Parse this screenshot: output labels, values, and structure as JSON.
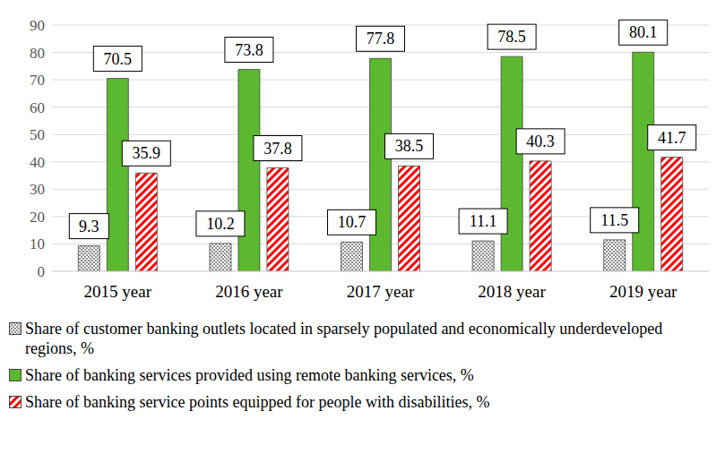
{
  "chart_data": {
    "type": "bar",
    "categories": [
      "2015 year",
      "2016 year",
      "2017 year",
      "2018 year",
      "2019 year"
    ],
    "series": [
      {
        "name": "Share of customer banking outlets located in sparsely populated and economically underdeveloped regions, %",
        "color": "#ffffff",
        "values": [
          9.3,
          10.2,
          10.7,
          11.1,
          11.5
        ]
      },
      {
        "name": "Share of banking services provided using remote banking services, %",
        "color": "#5cb82e",
        "values": [
          70.5,
          73.8,
          77.8,
          78.5,
          80.1
        ]
      },
      {
        "name": "Share of banking service points equipped for people with disabilities, %",
        "color": "#ff0000",
        "values": [
          35.9,
          37.8,
          38.5,
          40.3,
          41.7
        ]
      }
    ],
    "ylim": [
      0,
      90
    ],
    "yticks": [
      0,
      10,
      20,
      30,
      40,
      50,
      60,
      70,
      80,
      90
    ],
    "grid": true,
    "data_labels": true,
    "legend": "bottom"
  }
}
